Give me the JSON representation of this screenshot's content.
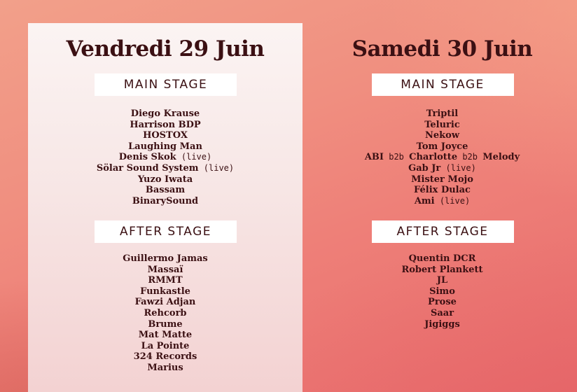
{
  "days": [
    {
      "title": "Vendredi 29 Juin",
      "main_stage_label": "MAIN STAGE",
      "main_stage": [
        [
          {
            "t": "Diego Krause"
          }
        ],
        [
          {
            "t": "Harrison BDP"
          }
        ],
        [
          {
            "t": "HOSTOX"
          }
        ],
        [
          {
            "t": "Laughing Man"
          }
        ],
        [
          {
            "t": "Denis Skok"
          },
          {
            "t": " (live)",
            "light": true
          }
        ],
        [
          {
            "t": "Sölar Sound System"
          },
          {
            "t": " (live)",
            "light": true
          }
        ],
        [
          {
            "t": "Yuzo Iwata"
          }
        ],
        [
          {
            "t": "Bassam"
          }
        ],
        [
          {
            "t": "BinarySound"
          }
        ]
      ],
      "after_stage_label": "AFTER STAGE",
      "after_stage": [
        [
          {
            "t": "Guillermo Jamas"
          }
        ],
        [
          {
            "t": "Massaï"
          }
        ],
        [
          {
            "t": "RMMT"
          }
        ],
        [
          {
            "t": "Funkastle"
          }
        ],
        [
          {
            "t": "Fawzi Adjan"
          }
        ],
        [
          {
            "t": "Rehcorb"
          }
        ],
        [
          {
            "t": "Brume"
          }
        ],
        [
          {
            "t": "Mat Matte"
          }
        ],
        [
          {
            "t": "La Pointe"
          }
        ],
        [
          {
            "t": "324 Records"
          }
        ],
        [
          {
            "t": "Marius"
          }
        ]
      ]
    },
    {
      "title": "Samedi 30 Juin",
      "main_stage_label": "MAIN STAGE",
      "main_stage": [
        [
          {
            "t": "Triptil"
          }
        ],
        [
          {
            "t": "Teluric"
          }
        ],
        [
          {
            "t": "Nekow"
          }
        ],
        [
          {
            "t": "Tom Joyce"
          }
        ],
        [
          {
            "t": "ABI"
          },
          {
            "t": " b2b ",
            "light": true
          },
          {
            "t": "Charlotte"
          },
          {
            "t": " b2b ",
            "light": true
          },
          {
            "t": "Melody"
          }
        ],
        [
          {
            "t": "Gab Jr"
          },
          {
            "t": " (live)",
            "light": true
          }
        ],
        [
          {
            "t": "Mister Mojo"
          }
        ],
        [
          {
            "t": "Félix Dulac"
          }
        ],
        [
          {
            "t": "Ami"
          },
          {
            "t": " (live)",
            "light": true
          }
        ]
      ],
      "after_stage_label": "AFTER STAGE",
      "after_stage": [
        [
          {
            "t": "Quentin DCR"
          }
        ],
        [
          {
            "t": "Robert Plankett"
          }
        ],
        [
          {
            "t": "JL"
          }
        ],
        [
          {
            "t": "Simo"
          }
        ],
        [
          {
            "t": "Prose"
          }
        ],
        [
          {
            "t": "Saar"
          }
        ],
        [
          {
            "t": "Jigiggs"
          }
        ]
      ]
    }
  ],
  "colors": {
    "text": "#3b1013",
    "panel": "#f8ecec",
    "background": "#ee8378"
  }
}
